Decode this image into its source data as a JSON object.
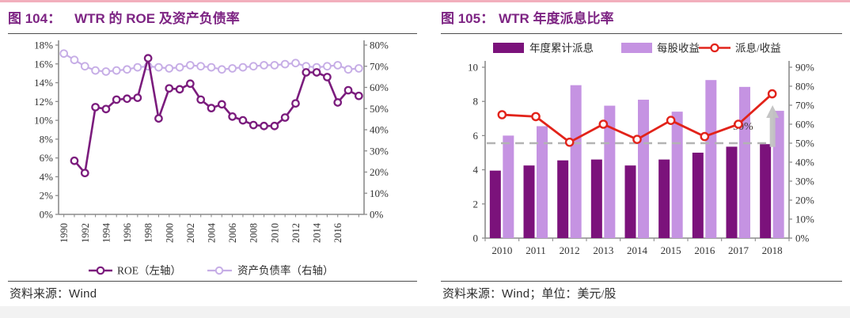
{
  "page": {
    "top_accent_color": "#f2afbc",
    "bottom_strip_color": "#f2f2f2"
  },
  "colors": {
    "title_purple": "#7d2483",
    "dark_purple": "#7b1c7d",
    "light_purple_line": "#c6ade6",
    "light_purple_bar": "#c593e2",
    "red_line": "#e2231a",
    "axis_gray": "#8c8c8c",
    "reference_gray": "#b3b3b3",
    "arrow_gray": "#c2c2c2"
  },
  "left_panel": {
    "title_prefix": "图 104：",
    "title_text": "WTR 的 ROE 及资产负债率",
    "source": {
      "label": "资料来源：",
      "value": "Wind",
      "suffix": ""
    }
  },
  "right_panel": {
    "title_prefix": "图 105：",
    "title_text": "WTR 年度派息比率",
    "source": {
      "label": "资料来源：",
      "value": "Wind",
      "suffix": "；单位：美元/股"
    }
  },
  "chart_data": [
    {
      "type": "line",
      "title": "图 104：WTR 的 ROE 及资产负债率",
      "categories": [
        "1990",
        "1991",
        "1992",
        "1993",
        "1994",
        "1995",
        "1996",
        "1997",
        "1998",
        "1999",
        "2000",
        "2001",
        "2002",
        "2003",
        "2004",
        "2005",
        "2006",
        "2007",
        "2008",
        "2009",
        "2010",
        "2011",
        "2012",
        "2013",
        "2014",
        "2015",
        "2016",
        "2017",
        "2018"
      ],
      "x_tick_labels": [
        "1990",
        "1992",
        "1994",
        "1996",
        "1998",
        "2000",
        "2002",
        "2004",
        "2006",
        "2008",
        "2010",
        "2012",
        "2014",
        "2016"
      ],
      "series": [
        {
          "name": "ROE（左轴）",
          "axis": "left",
          "color": "#7b1c7d",
          "values": [
            null,
            5.7,
            4.4,
            11.4,
            11.2,
            12.2,
            12.3,
            12.4,
            16.6,
            10.2,
            13.4,
            13.3,
            13.9,
            12.2,
            11.3,
            11.7,
            10.4,
            10.0,
            9.5,
            9.4,
            9.4,
            10.3,
            11.8,
            15.1,
            15.1,
            14.6,
            11.9,
            13.2,
            12.6
          ]
        },
        {
          "name": "资产负债率（右轴）",
          "axis": "right",
          "color": "#c6ade6",
          "values": [
            76,
            73,
            70,
            68,
            67.5,
            68,
            68.5,
            69.5,
            70,
            69.5,
            69,
            69.5,
            70.5,
            70,
            69.5,
            68.5,
            69,
            69.5,
            70,
            70.5,
            70.5,
            71,
            71.5,
            70,
            69.5,
            70,
            70.5,
            68.5,
            69
          ]
        }
      ],
      "left_axis": {
        "min": 0,
        "max": 18,
        "step": 2,
        "format": "percent"
      },
      "right_axis": {
        "min": 0,
        "max": 80,
        "step": 10,
        "format": "percent"
      },
      "grid": false,
      "legend_position": "bottom"
    },
    {
      "type": "bar+line",
      "title": "图 105：WTR 年度派息比率",
      "unit": "美元/股",
      "categories": [
        "2010",
        "2011",
        "2012",
        "2013",
        "2014",
        "2015",
        "2016",
        "2017",
        "2018"
      ],
      "series": [
        {
          "name": "年度累计派息",
          "type": "bar",
          "axis": "left",
          "color": "#7b127b",
          "values": [
            3.95,
            4.25,
            4.55,
            4.6,
            4.25,
            4.6,
            5.0,
            5.35,
            5.5
          ]
        },
        {
          "name": "每股收益",
          "type": "bar",
          "axis": "left",
          "color": "#c593e2",
          "values": [
            6.0,
            6.55,
            8.95,
            7.75,
            8.1,
            7.4,
            9.25,
            8.85,
            7.45
          ]
        },
        {
          "name": "派息/收益",
          "type": "line",
          "axis": "right",
          "color": "#e2231a",
          "values": [
            65,
            64,
            50.5,
            60,
            52,
            62,
            53.5,
            60,
            76
          ]
        }
      ],
      "left_axis": {
        "min": 0,
        "max": 10,
        "step": 2
      },
      "right_axis": {
        "min": 0,
        "max": 90,
        "step": 10,
        "format": "percent"
      },
      "reference_line": {
        "axis": "right",
        "value": 50,
        "style": "dashed",
        "color": "#b3b3b3"
      },
      "annotation": {
        "text": "50%",
        "arrow": "up",
        "arrow_at_category": "2018"
      },
      "grid": false,
      "legend_position": "top"
    }
  ]
}
